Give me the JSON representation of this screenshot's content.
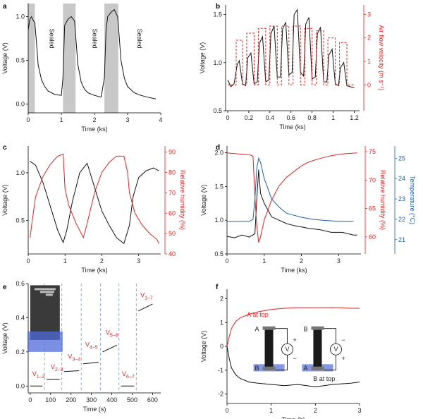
{
  "chart_data": [
    {
      "panel": "a",
      "type": "line",
      "xlabel": "Time (ks)",
      "ylabel": "Voltage (V)",
      "xlim": [
        0,
        4
      ],
      "ylim": [
        -0.1,
        1.15
      ],
      "xticks": [
        0,
        1,
        2,
        3,
        4
      ],
      "yticks": [
        0.0,
        0.5,
        1.0
      ],
      "shaded_intervals": [
        [
          0,
          0.2
        ],
        [
          1.05,
          1.43
        ],
        [
          2.3,
          2.72
        ]
      ],
      "annotations": [
        "Sealed",
        "Sealed",
        "Sealed"
      ],
      "series": [
        {
          "color": "#111111",
          "x": [
            0,
            0.05,
            0.1,
            0.15,
            0.2,
            0.25,
            0.3,
            0.4,
            0.5,
            0.6,
            0.8,
            1.0,
            1.05,
            1.1,
            1.2,
            1.3,
            1.4,
            1.45,
            1.5,
            1.6,
            1.7,
            1.8,
            2.0,
            2.2,
            2.3,
            2.35,
            2.4,
            2.5,
            2.6,
            2.7,
            2.75,
            2.8,
            2.9,
            3.0,
            3.2,
            3.4,
            3.6,
            3.85
          ],
          "y": [
            0.85,
            0.97,
            1.0,
            0.96,
            0.93,
            0.7,
            0.45,
            0.28,
            0.2,
            0.15,
            0.11,
            0.1,
            0.3,
            0.9,
            0.97,
            1.0,
            0.95,
            0.7,
            0.45,
            0.25,
            0.17,
            0.13,
            0.1,
            0.08,
            0.3,
            0.85,
            1.0,
            1.05,
            1.08,
            1.0,
            0.75,
            0.5,
            0.3,
            0.2,
            0.13,
            0.1,
            0.08,
            0.06
          ]
        }
      ]
    },
    {
      "panel": "b",
      "type": "line",
      "xlabel": "Time (ks)",
      "ylabel": "Voltage (V)",
      "y2label": "Air flow velocity (m s⁻¹)",
      "xlim": [
        -0.02,
        1.25
      ],
      "ylim": [
        0.5,
        1.6
      ],
      "y2lim": [
        -1.1,
        3.4
      ],
      "xticks": [
        0.0,
        0.2,
        0.4,
        0.6,
        0.8,
        1.0,
        1.2
      ],
      "yticks": [
        0.5,
        1.0,
        1.5
      ],
      "y2ticks": [
        0,
        1,
        2,
        3
      ],
      "series": [
        {
          "color": "#111111",
          "x": [
            0,
            0.03,
            0.06,
            0.09,
            0.11,
            0.14,
            0.17,
            0.19,
            0.22,
            0.25,
            0.28,
            0.3,
            0.33,
            0.36,
            0.39,
            0.41,
            0.44,
            0.47,
            0.5,
            0.52,
            0.55,
            0.58,
            0.61,
            0.63,
            0.66,
            0.69,
            0.72,
            0.74,
            0.77,
            0.8,
            0.83,
            0.85,
            0.88,
            0.91,
            0.94,
            0.96,
            0.99,
            1.02,
            1.05,
            1.07,
            1.1,
            1.13,
            1.16,
            1.2
          ],
          "y": [
            0.82,
            0.75,
            0.78,
            0.98,
            1.02,
            0.78,
            0.76,
            1.05,
            1.1,
            0.78,
            0.8,
            1.2,
            1.27,
            0.8,
            0.82,
            1.3,
            1.38,
            0.85,
            0.85,
            1.35,
            1.42,
            0.87,
            0.9,
            1.5,
            1.55,
            0.9,
            0.86,
            1.4,
            1.47,
            0.83,
            0.85,
            1.3,
            1.37,
            0.8,
            0.8,
            1.08,
            1.14,
            0.78,
            0.76,
            0.95,
            1.0,
            0.76,
            0.75,
            0.74
          ]
        },
        {
          "name": "Air flow velocity",
          "color": "#d62728",
          "dashed": true,
          "axis": "y2",
          "x": [
            0,
            0.08,
            0.08,
            0.14,
            0.14,
            0.18,
            0.18,
            0.25,
            0.25,
            0.29,
            0.29,
            0.36,
            0.36,
            0.4,
            0.4,
            0.47,
            0.47,
            0.51,
            0.51,
            0.58,
            0.58,
            0.62,
            0.62,
            0.69,
            0.69,
            0.73,
            0.73,
            0.8,
            0.8,
            0.84,
            0.84,
            0.91,
            0.91,
            0.95,
            0.95,
            1.02,
            1.02,
            1.06,
            1.06,
            1.13,
            1.13,
            1.2
          ],
          "y": [
            0,
            0,
            1.9,
            1.9,
            0,
            0,
            2.2,
            2.2,
            0,
            0,
            2.4,
            2.4,
            0,
            0,
            2.5,
            2.5,
            0,
            0,
            2.5,
            2.5,
            0,
            0,
            2.5,
            2.5,
            0,
            0,
            2.4,
            2.4,
            0,
            0,
            2.3,
            2.3,
            0,
            0,
            2.0,
            2.0,
            0,
            0,
            1.8,
            1.8,
            0,
            0
          ]
        }
      ]
    },
    {
      "panel": "c",
      "type": "line",
      "xlabel": "Time (ks)",
      "ylabel": "Voltage (V)",
      "y2label": "Relative humidity (%)",
      "xlim": [
        0,
        3.6
      ],
      "ylim": [
        0.15,
        1.28
      ],
      "y2lim": [
        40,
        93
      ],
      "xticks": [
        0,
        1,
        2,
        3
      ],
      "yticks": [
        0.5,
        1.0
      ],
      "y2ticks": [
        40,
        50,
        60,
        70,
        80,
        90
      ],
      "series": [
        {
          "color": "#111111",
          "x": [
            0.05,
            0.2,
            0.4,
            0.6,
            0.8,
            0.95,
            1.05,
            1.2,
            1.4,
            1.6,
            1.8,
            2.0,
            2.2,
            2.4,
            2.6,
            2.75,
            2.85,
            3.0,
            3.2,
            3.4,
            3.55
          ],
          "y": [
            1.12,
            1.08,
            0.9,
            0.65,
            0.4,
            0.27,
            0.4,
            0.7,
            1.0,
            1.1,
            0.85,
            0.6,
            0.45,
            0.32,
            0.26,
            0.45,
            0.75,
            0.95,
            1.02,
            1.05,
            1.02
          ]
        },
        {
          "color": "#d62728",
          "axis": "y2",
          "x": [
            0.05,
            0.1,
            0.2,
            0.4,
            0.6,
            0.8,
            0.95,
            1.0,
            1.1,
            1.3,
            1.5,
            1.6,
            1.8,
            2.0,
            2.2,
            2.4,
            2.6,
            2.7,
            2.75,
            2.9,
            3.1,
            3.3,
            3.5,
            3.55
          ],
          "y": [
            48,
            55,
            68,
            78,
            84,
            88,
            89,
            72,
            64,
            55,
            48,
            55,
            70,
            80,
            85,
            88,
            88,
            80,
            70,
            60,
            54,
            50,
            47,
            45
          ]
        }
      ]
    },
    {
      "panel": "d",
      "type": "line",
      "xlabel": "Time (ks)",
      "ylabel": "Voltage (V)",
      "y2label": "Relative humidity (%)",
      "y3label": "Temperature (°C)",
      "xlim": [
        0,
        3.6
      ],
      "ylim": [
        0.5,
        2.1
      ],
      "y2lim": [
        57,
        76
      ],
      "y3lim": [
        20.3,
        25.6
      ],
      "xticks": [
        0,
        1,
        2,
        3
      ],
      "yticks": [
        0.5,
        1.0,
        1.5,
        2.0
      ],
      "y2ticks": [
        60,
        65,
        70,
        75
      ],
      "y3ticks": [
        21,
        22,
        23,
        24,
        25
      ],
      "series": [
        {
          "color": "#111111",
          "x": [
            0,
            0.2,
            0.4,
            0.6,
            0.75,
            0.8,
            0.85,
            0.9,
            1.0,
            1.1,
            1.2,
            1.4,
            1.6,
            1.8,
            2.0,
            2.2,
            2.5,
            2.8,
            3.1,
            3.4,
            3.5
          ],
          "y": [
            0.76,
            0.74,
            0.78,
            0.75,
            0.8,
            1.3,
            1.75,
            1.4,
            1.25,
            1.15,
            1.05,
            1.0,
            0.95,
            0.92,
            0.9,
            0.88,
            0.86,
            0.82,
            0.82,
            0.78,
            0.78
          ]
        },
        {
          "color": "#d62728",
          "axis": "y2",
          "x": [
            0,
            0.3,
            0.6,
            0.7,
            0.75,
            0.8,
            0.85,
            0.9,
            1.0,
            1.2,
            1.4,
            1.6,
            1.8,
            2.0,
            2.2,
            2.5,
            2.8,
            3.1,
            3.5
          ],
          "y": [
            74.8,
            74.6,
            74.5,
            74.2,
            67,
            62,
            59,
            60,
            63,
            66.5,
            69,
            70.5,
            71.5,
            72.5,
            73.2,
            73.8,
            74.3,
            74.6,
            74.8
          ]
        },
        {
          "color": "#1f5fa8",
          "axis": "y3",
          "x": [
            0,
            0.3,
            0.6,
            0.7,
            0.75,
            0.8,
            0.85,
            0.9,
            1.0,
            1.1,
            1.2,
            1.4,
            1.6,
            1.8,
            2.0,
            2.3,
            2.6,
            3.0,
            3.4
          ],
          "y": [
            21.9,
            21.9,
            21.9,
            22.0,
            23.0,
            24.5,
            25.0,
            24.8,
            24.0,
            23.5,
            23.0,
            22.6,
            22.3,
            22.2,
            22.1,
            22.0,
            21.95,
            21.9,
            21.9
          ]
        }
      ]
    },
    {
      "panel": "e",
      "type": "line",
      "xlabel": "Time (s)",
      "ylabel": "Voltage (V)",
      "xlim": [
        -10,
        640
      ],
      "ylim": [
        -0.04,
        0.6
      ],
      "xticks": [
        0,
        100,
        200,
        300,
        400,
        500,
        600
      ],
      "yticks": [
        0.0,
        0.2,
        0.4,
        0.6
      ],
      "dividers": [
        70,
        155,
        250,
        345,
        435,
        520
      ],
      "segment_labels": [
        "V",
        "V",
        "V",
        "V",
        "V",
        "V"
      ],
      "segment_subscripts": [
        "1–2",
        "2–3",
        "3–4",
        "4–5",
        "5–6",
        "6–7",
        "1–7"
      ],
      "series": [
        {
          "color": "#111111",
          "segments": [
            {
              "x": [
                0,
                60
              ],
              "y": [
                0.0,
                0.0
              ]
            },
            {
              "x": [
                80,
                145
              ],
              "y": [
                0.04,
                0.04
              ]
            },
            {
              "x": [
                165,
                240
              ],
              "y": [
                0.085,
                0.09
              ]
            },
            {
              "x": [
                260,
                335
              ],
              "y": [
                0.13,
                0.14
              ]
            },
            {
              "x": [
                355,
                425
              ],
              "y": [
                0.2,
                0.24
              ]
            },
            {
              "x": [
                445,
                510
              ],
              "y": [
                0.0,
                0.0
              ]
            },
            {
              "x": [
                530,
                600
              ],
              "y": [
                0.44,
                0.48
              ]
            }
          ]
        }
      ]
    },
    {
      "panel": "f",
      "type": "line",
      "xlabel": "Time (h)",
      "ylabel": "Voltage (V)",
      "xlim": [
        0,
        3
      ],
      "ylim": [
        -2.4,
        2.4
      ],
      "xticks": [
        0,
        1,
        2,
        3
      ],
      "yticks": [
        -2,
        -1,
        0,
        1,
        2
      ],
      "annotations": [
        "A at top",
        "B at top",
        "A",
        "B",
        "V",
        "+",
        "−",
        "B",
        "A",
        "V",
        "−",
        "+"
      ],
      "series": [
        {
          "name": "A at top",
          "color": "#d62728",
          "x": [
            0,
            0.05,
            0.1,
            0.2,
            0.3,
            0.5,
            0.7,
            1.0,
            1.3,
            1.6,
            2.0,
            2.4,
            2.8,
            3.0
          ],
          "y": [
            0,
            0.4,
            0.75,
            1.05,
            1.2,
            1.35,
            1.45,
            1.55,
            1.6,
            1.62,
            1.62,
            1.63,
            1.6,
            1.6
          ]
        },
        {
          "name": "B at top",
          "color": "#111111",
          "x": [
            0,
            0.05,
            0.1,
            0.2,
            0.3,
            0.5,
            0.7,
            1.0,
            1.3,
            1.6,
            2.0,
            2.4,
            2.8,
            3.0
          ],
          "y": [
            0,
            -0.5,
            -0.9,
            -1.2,
            -1.35,
            -1.5,
            -1.55,
            -1.6,
            -1.65,
            -1.6,
            -1.7,
            -1.6,
            -1.55,
            -1.5
          ]
        }
      ]
    }
  ]
}
